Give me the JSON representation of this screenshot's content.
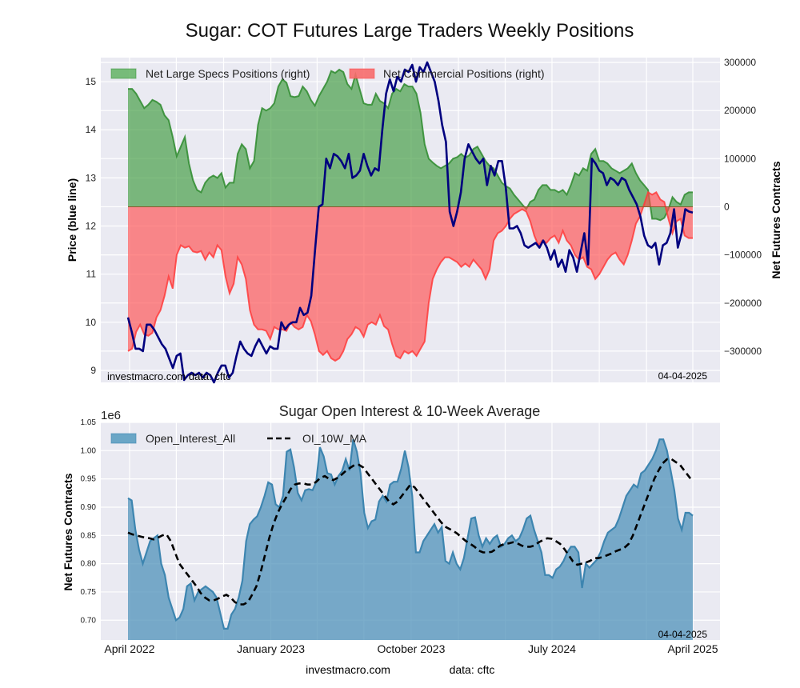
{
  "chart_data": [
    {
      "type": "area",
      "title": "Sugar: COT Futures Large Traders Weekly Positions",
      "ylabel_left": "Price (blue line)",
      "ylabel_right": "Net Futures Contracts",
      "ylim_left": [
        8.75,
        15.5
      ],
      "ylim_right": [
        -365000,
        310000
      ],
      "yticks_left": [
        "9",
        "10",
        "11",
        "12",
        "13",
        "14",
        "15"
      ],
      "yticks_right": [
        "300000",
        "200000",
        "100000",
        "0",
        "−100000",
        "−200000",
        "−300000"
      ],
      "ytick_values_left": [
        9,
        10,
        11,
        12,
        13,
        14,
        15
      ],
      "ytick_values_right": [
        300000,
        200000,
        100000,
        0,
        -100000,
        -200000,
        -300000
      ],
      "grid": true,
      "legend_position": "top",
      "legend": [
        "Net Large Specs Positions (right)",
        "Net Commercial Positions (right)"
      ],
      "annotation_left": "investmacro.com    data: cftc",
      "annotation_right": "04-04-2025",
      "x_start": "2022-03-29",
      "x_end": "2025-04-01",
      "series": [
        {
          "name": "Net Large Specs Positions (right)",
          "color": "#2e8b2e",
          "values": [
            245000,
            245000,
            235000,
            220000,
            205000,
            212000,
            222000,
            218000,
            212000,
            190000,
            180000,
            145000,
            105000,
            125000,
            145000,
            90000,
            55000,
            35000,
            30000,
            50000,
            60000,
            65000,
            60000,
            70000,
            40000,
            50000,
            50000,
            110000,
            130000,
            120000,
            80000,
            95000,
            170000,
            205000,
            200000,
            205000,
            215000,
            250000,
            265000,
            258000,
            230000,
            228000,
            230000,
            250000,
            240000,
            222000,
            210000,
            230000,
            245000,
            260000,
            282000,
            278000,
            285000,
            280000,
            255000,
            245000,
            275000,
            245000,
            215000,
            212000,
            212000,
            235000,
            220000,
            215000,
            205000,
            235000,
            245000,
            240000,
            255000,
            250000,
            250000,
            235000,
            195000,
            130000,
            100000,
            92000,
            85000,
            80000,
            85000,
            90000,
            100000,
            103000,
            110000,
            102000,
            107000,
            120000,
            125000,
            110000,
            95000,
            85000,
            80000,
            65000,
            50000,
            43000,
            38000,
            25000,
            15000,
            5000,
            -5000,
            10000,
            15000,
            35000,
            45000,
            45000,
            35000,
            35000,
            30000,
            35000,
            25000,
            45000,
            70000,
            65000,
            80000,
            75000,
            110000,
            120000,
            95000,
            95000,
            90000,
            80000,
            75000,
            70000,
            75000,
            80000,
            90000,
            70000,
            55000,
            45000,
            35000,
            -25000,
            -25000,
            -28000,
            -23000,
            -5000,
            20000,
            10000,
            5000,
            25000,
            30000,
            30000
          ]
        },
        {
          "name": "Net Commercial Positions (right)",
          "color": "#ff3b3b",
          "values": [
            -300000,
            -295000,
            -260000,
            -245000,
            -265000,
            -268000,
            -262000,
            -230000,
            -215000,
            -185000,
            -145000,
            -170000,
            -100000,
            -80000,
            -85000,
            -82000,
            -93000,
            -95000,
            -92000,
            -110000,
            -95000,
            -105000,
            -80000,
            -90000,
            -145000,
            -180000,
            -160000,
            -105000,
            -120000,
            -150000,
            -215000,
            -245000,
            -255000,
            -255000,
            -258000,
            -275000,
            -250000,
            -255000,
            -255000,
            -258000,
            -240000,
            -250000,
            -255000,
            -250000,
            -225000,
            -238000,
            -265000,
            -300000,
            -308000,
            -300000,
            -315000,
            -320000,
            -315000,
            -300000,
            -275000,
            -265000,
            -250000,
            -255000,
            -270000,
            -245000,
            -240000,
            -245000,
            -225000,
            -248000,
            -255000,
            -285000,
            -310000,
            -315000,
            -300000,
            -305000,
            -300000,
            -310000,
            -295000,
            -280000,
            -200000,
            -150000,
            -130000,
            -115000,
            -105000,
            -105000,
            -110000,
            -115000,
            -125000,
            -118000,
            -125000,
            -110000,
            -120000,
            -130000,
            -150000,
            -130000,
            -70000,
            -55000,
            -50000,
            -40000,
            -25000,
            -15000,
            -10000,
            -5000,
            -10000,
            -30000,
            -60000,
            -80000,
            -70000,
            -75000,
            -65000,
            -60000,
            -75000,
            -50000,
            -70000,
            -80000,
            -100000,
            -110000,
            -105000,
            -125000,
            -130000,
            -150000,
            -140000,
            -125000,
            -110000,
            -100000,
            -95000,
            -110000,
            -120000,
            -100000,
            -70000,
            -35000,
            -20000,
            5000,
            30000,
            25000,
            30000,
            15000,
            10000,
            -25000,
            -55000,
            -30000,
            -25000,
            -60000,
            -65000,
            -65000
          ]
        },
        {
          "name": "Price (blue line)",
          "axis": "left",
          "color": "#00007f",
          "values": [
            10.1,
            9.8,
            9.45,
            9.45,
            9.4,
            9.95,
            9.95,
            9.85,
            9.7,
            9.55,
            9.45,
            9.25,
            9.05,
            9.3,
            9.35,
            8.8,
            8.9,
            8.95,
            8.9,
            8.95,
            8.85,
            8.95,
            8.9,
            8.75,
            8.95,
            9.1,
            9.1,
            8.85,
            8.95,
            9.3,
            9.6,
            9.45,
            9.35,
            9.3,
            9.5,
            9.65,
            9.5,
            9.35,
            9.5,
            9.45,
            9.45,
            10.0,
            9.85,
            9.95,
            10.0,
            10.0,
            10.3,
            10.15,
            10.2,
            10.55,
            11.5,
            12.4,
            12.45,
            13.4,
            13.2,
            13.5,
            13.45,
            13.35,
            13.2,
            13.5,
            13.0,
            13.05,
            13.15,
            13.5,
            13.25,
            13.05,
            13.2,
            13.15,
            14.0,
            14.75,
            15.05,
            14.8,
            15.1,
            15.0,
            15.25,
            15.2,
            15.35,
            15.0,
            15.3,
            15.2,
            15.4,
            15.2,
            15.0,
            14.6,
            14.1,
            13.75,
            12.3,
            12.0,
            12.3,
            12.7,
            13.4,
            13.7,
            13.55,
            13.4,
            13.3,
            13.4,
            12.85,
            13.25,
            13.05,
            13.35,
            13.35,
            12.8,
            11.95,
            11.95,
            12.0,
            11.85,
            11.6,
            11.55,
            11.6,
            11.65,
            11.55,
            11.7,
            11.55,
            11.3,
            11.5,
            11.15,
            11.3,
            11.05,
            11.5,
            11.35,
            11.05,
            11.45,
            11.85,
            11.2,
            13.4,
            13.3,
            13.15,
            13.1,
            12.85,
            13.0,
            12.95,
            12.85,
            13.0,
            12.95,
            12.75,
            12.6,
            12.45,
            12.2,
            11.8,
            11.6,
            11.55,
            11.65,
            11.2,
            11.6,
            11.65,
            11.85,
            12.35,
            11.55,
            11.85,
            12.35,
            12.3,
            12.28
          ]
        }
      ]
    },
    {
      "type": "area",
      "title": "Sugar Open Interest & 10-Week Average",
      "ylabel": "Net Futures Contracts",
      "yaxis_offset_label": "1e6",
      "ylim": [
        0.665,
        1.05
      ],
      "yticks": [
        "1.05",
        "1.00",
        "0.95",
        "0.90",
        "0.85",
        "0.80",
        "0.75",
        "0.70"
      ],
      "ytick_values": [
        1.05,
        1.0,
        0.95,
        0.9,
        0.85,
        0.8,
        0.75,
        0.7
      ],
      "xticks": [
        "April 2022",
        "January 2023",
        "October 2023",
        "July 2024",
        "April 2025"
      ],
      "xtick_dates": [
        "2022-04-01",
        "2023-01-01",
        "2023-10-01",
        "2024-07-01",
        "2025-04-01"
      ],
      "grid": true,
      "legend_position": "top-left",
      "legend": [
        "Open_Interest_All",
        "OI_10W_MA"
      ],
      "annotation_right": "04-04-2025",
      "x_start": "2022-03-29",
      "x_end": "2025-04-01",
      "series": [
        {
          "name": "Open_Interest_All",
          "color": "#3d85b0",
          "values": [
            0.916,
            0.912,
            0.86,
            0.825,
            0.8,
            0.82,
            0.84,
            0.845,
            0.85,
            0.8,
            0.78,
            0.74,
            0.72,
            0.7,
            0.705,
            0.72,
            0.76,
            0.765,
            0.735,
            0.75,
            0.755,
            0.76,
            0.755,
            0.75,
            0.74,
            0.712,
            0.685,
            0.685,
            0.71,
            0.72,
            0.74,
            0.77,
            0.84,
            0.87,
            0.878,
            0.884,
            0.9,
            0.92,
            0.944,
            0.94,
            0.905,
            0.9,
            0.92,
            0.998,
            1.002,
            0.97,
            0.925,
            0.912,
            0.93,
            0.932,
            0.93,
            0.945,
            1.006,
            0.99,
            0.96,
            0.958,
            0.94,
            0.955,
            0.964,
            0.985,
            0.965,
            1.02,
            0.998,
            0.96,
            0.89,
            0.863,
            0.875,
            0.878,
            0.91,
            0.92,
            0.91,
            0.94,
            0.945,
            0.945,
            0.968,
            1.0,
            0.97,
            0.92,
            0.82,
            0.82,
            0.84,
            0.85,
            0.86,
            0.87,
            0.855,
            0.865,
            0.805,
            0.8,
            0.82,
            0.8,
            0.79,
            0.81,
            0.845,
            0.88,
            0.882,
            0.85,
            0.83,
            0.845,
            0.835,
            0.845,
            0.85,
            0.83,
            0.835,
            0.845,
            0.85,
            0.84,
            0.845,
            0.86,
            0.88,
            0.885,
            0.86,
            0.84,
            0.82,
            0.78,
            0.78,
            0.775,
            0.79,
            0.795,
            0.805,
            0.82,
            0.83,
            0.83,
            0.82,
            0.757,
            0.8,
            0.793,
            0.8,
            0.807,
            0.82,
            0.84,
            0.855,
            0.86,
            0.865,
            0.88,
            0.9,
            0.92,
            0.93,
            0.94,
            0.935,
            0.96,
            0.965,
            0.975,
            0.985,
            1.0,
            1.02,
            1.02,
            1.0,
            0.965,
            0.93,
            0.88,
            0.86,
            0.89,
            0.89,
            0.885
          ]
        },
        {
          "name": "OI_10W_MA",
          "color": "#000000",
          "style": "dashed",
          "values": [
            0.855,
            0.852,
            0.85,
            0.848,
            0.846,
            0.845,
            0.843,
            0.846,
            0.85,
            0.852,
            0.84,
            0.82,
            0.8,
            0.79,
            0.78,
            0.77,
            0.76,
            0.748,
            0.74,
            0.735,
            0.735,
            0.738,
            0.742,
            0.745,
            0.74,
            0.732,
            0.728,
            0.728,
            0.732,
            0.745,
            0.76,
            0.785,
            0.815,
            0.845,
            0.87,
            0.89,
            0.905,
            0.918,
            0.932,
            0.94,
            0.942,
            0.942,
            0.94,
            0.94,
            0.945,
            0.952,
            0.955,
            0.95,
            0.948,
            0.952,
            0.958,
            0.965,
            0.97,
            0.975,
            0.975,
            0.97,
            0.96,
            0.95,
            0.94,
            0.93,
            0.92,
            0.91,
            0.905,
            0.91,
            0.92,
            0.93,
            0.94,
            0.935,
            0.925,
            0.915,
            0.905,
            0.895,
            0.885,
            0.875,
            0.866,
            0.862,
            0.858,
            0.853,
            0.846,
            0.84,
            0.835,
            0.83,
            0.823,
            0.82,
            0.82,
            0.821,
            0.826,
            0.832,
            0.835,
            0.836,
            0.838,
            0.836,
            0.832,
            0.83,
            0.83,
            0.832,
            0.838,
            0.842,
            0.845,
            0.844,
            0.84,
            0.835,
            0.826,
            0.815,
            0.804,
            0.798,
            0.8,
            0.802,
            0.805,
            0.81,
            0.81,
            0.812,
            0.815,
            0.818,
            0.822,
            0.825,
            0.828,
            0.835,
            0.85,
            0.87,
            0.89,
            0.91,
            0.93,
            0.95,
            0.965,
            0.978,
            0.985,
            0.985,
            0.98,
            0.975,
            0.965,
            0.955,
            0.945
          ]
        }
      ]
    }
  ],
  "footer": {
    "site": "investmacro.com",
    "source": "data: cftc"
  }
}
